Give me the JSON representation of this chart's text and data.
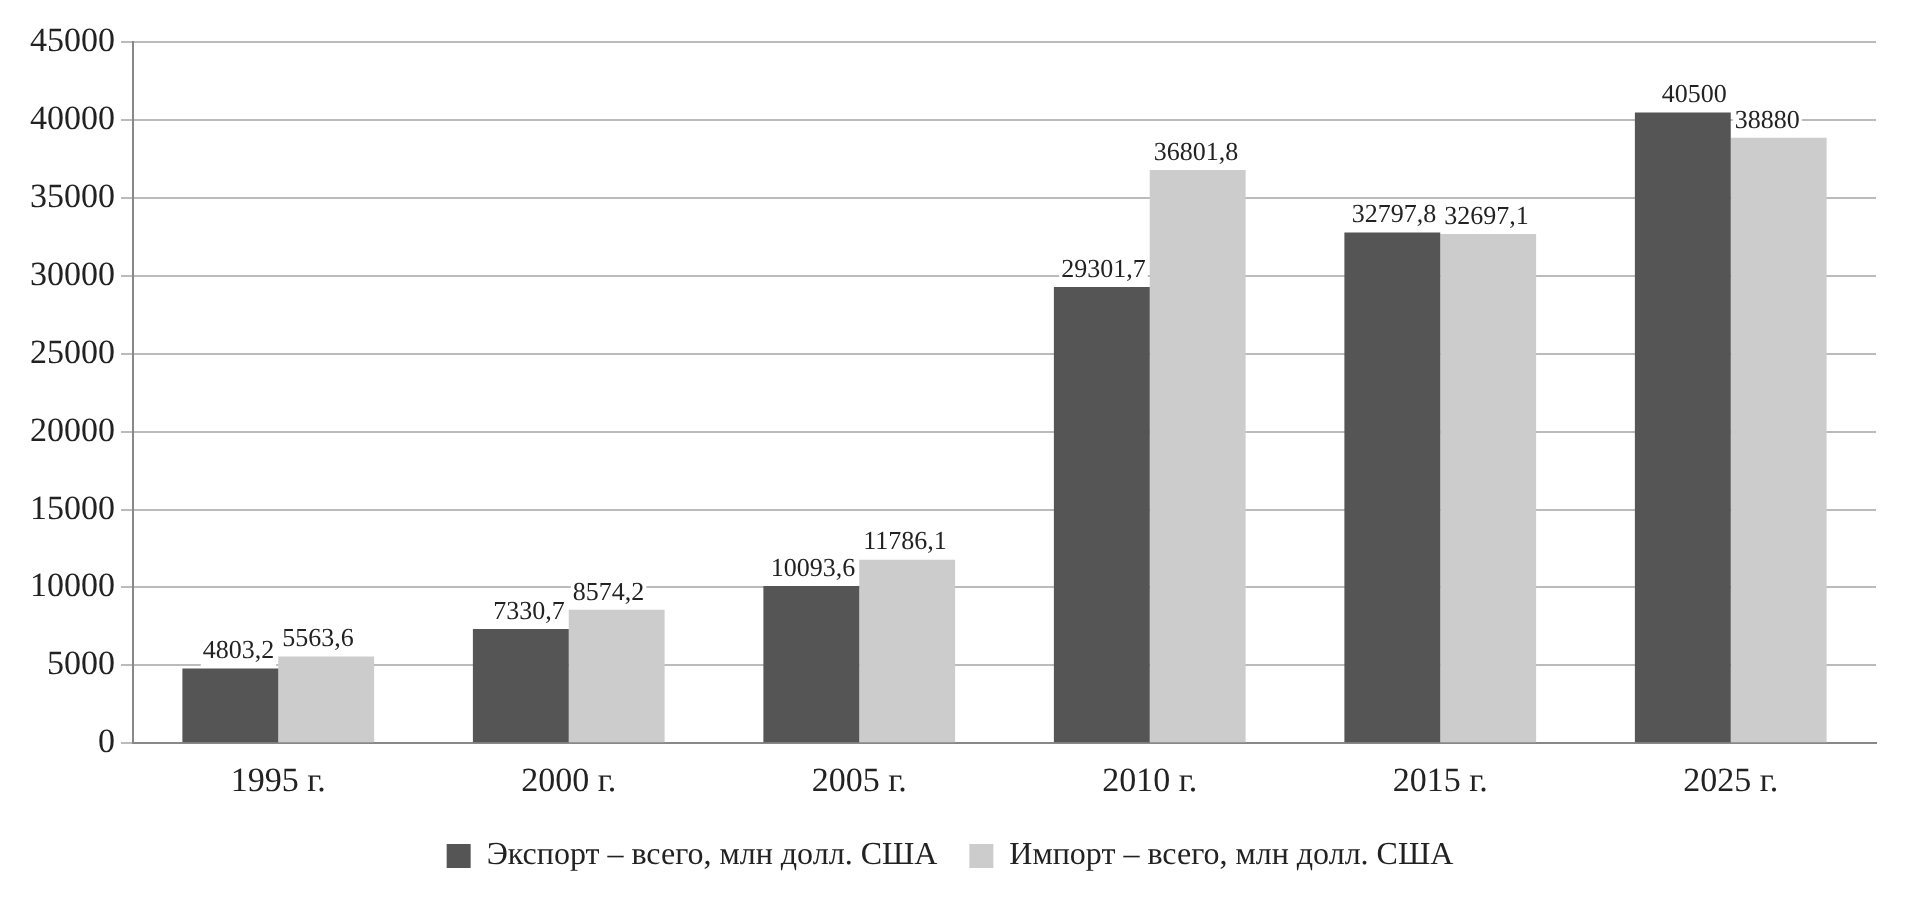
{
  "chart_data": {
    "type": "bar",
    "categories": [
      "1995 г.",
      "2000 г.",
      "2005 г.",
      "2010 г.",
      "2015 г.",
      "2025 г."
    ],
    "series": [
      {
        "name": "Экспорт – всего, млн долл. США",
        "color": "#555555",
        "values": [
          4803.2,
          7330.7,
          10093.6,
          29301.7,
          32797.8,
          40500
        ],
        "value_labels": [
          "4803,2",
          "7330,7",
          "10093,6",
          "29301,7",
          "32797,8",
          "40500"
        ]
      },
      {
        "name": "Импорт – всего, млн долл. США",
        "color": "#cccccc",
        "values": [
          5563.6,
          8574.2,
          11786.1,
          36801.8,
          32697.1,
          38880
        ],
        "value_labels": [
          "5563,6",
          "8574,2",
          "11786,1",
          "36801,8",
          "32697,1",
          "38880"
        ]
      }
    ],
    "ylim": [
      0,
      45000
    ],
    "yticks": [
      0,
      5000,
      10000,
      15000,
      20000,
      25000,
      30000,
      35000,
      40000,
      45000
    ],
    "grid": "y",
    "legend": "bottom"
  }
}
